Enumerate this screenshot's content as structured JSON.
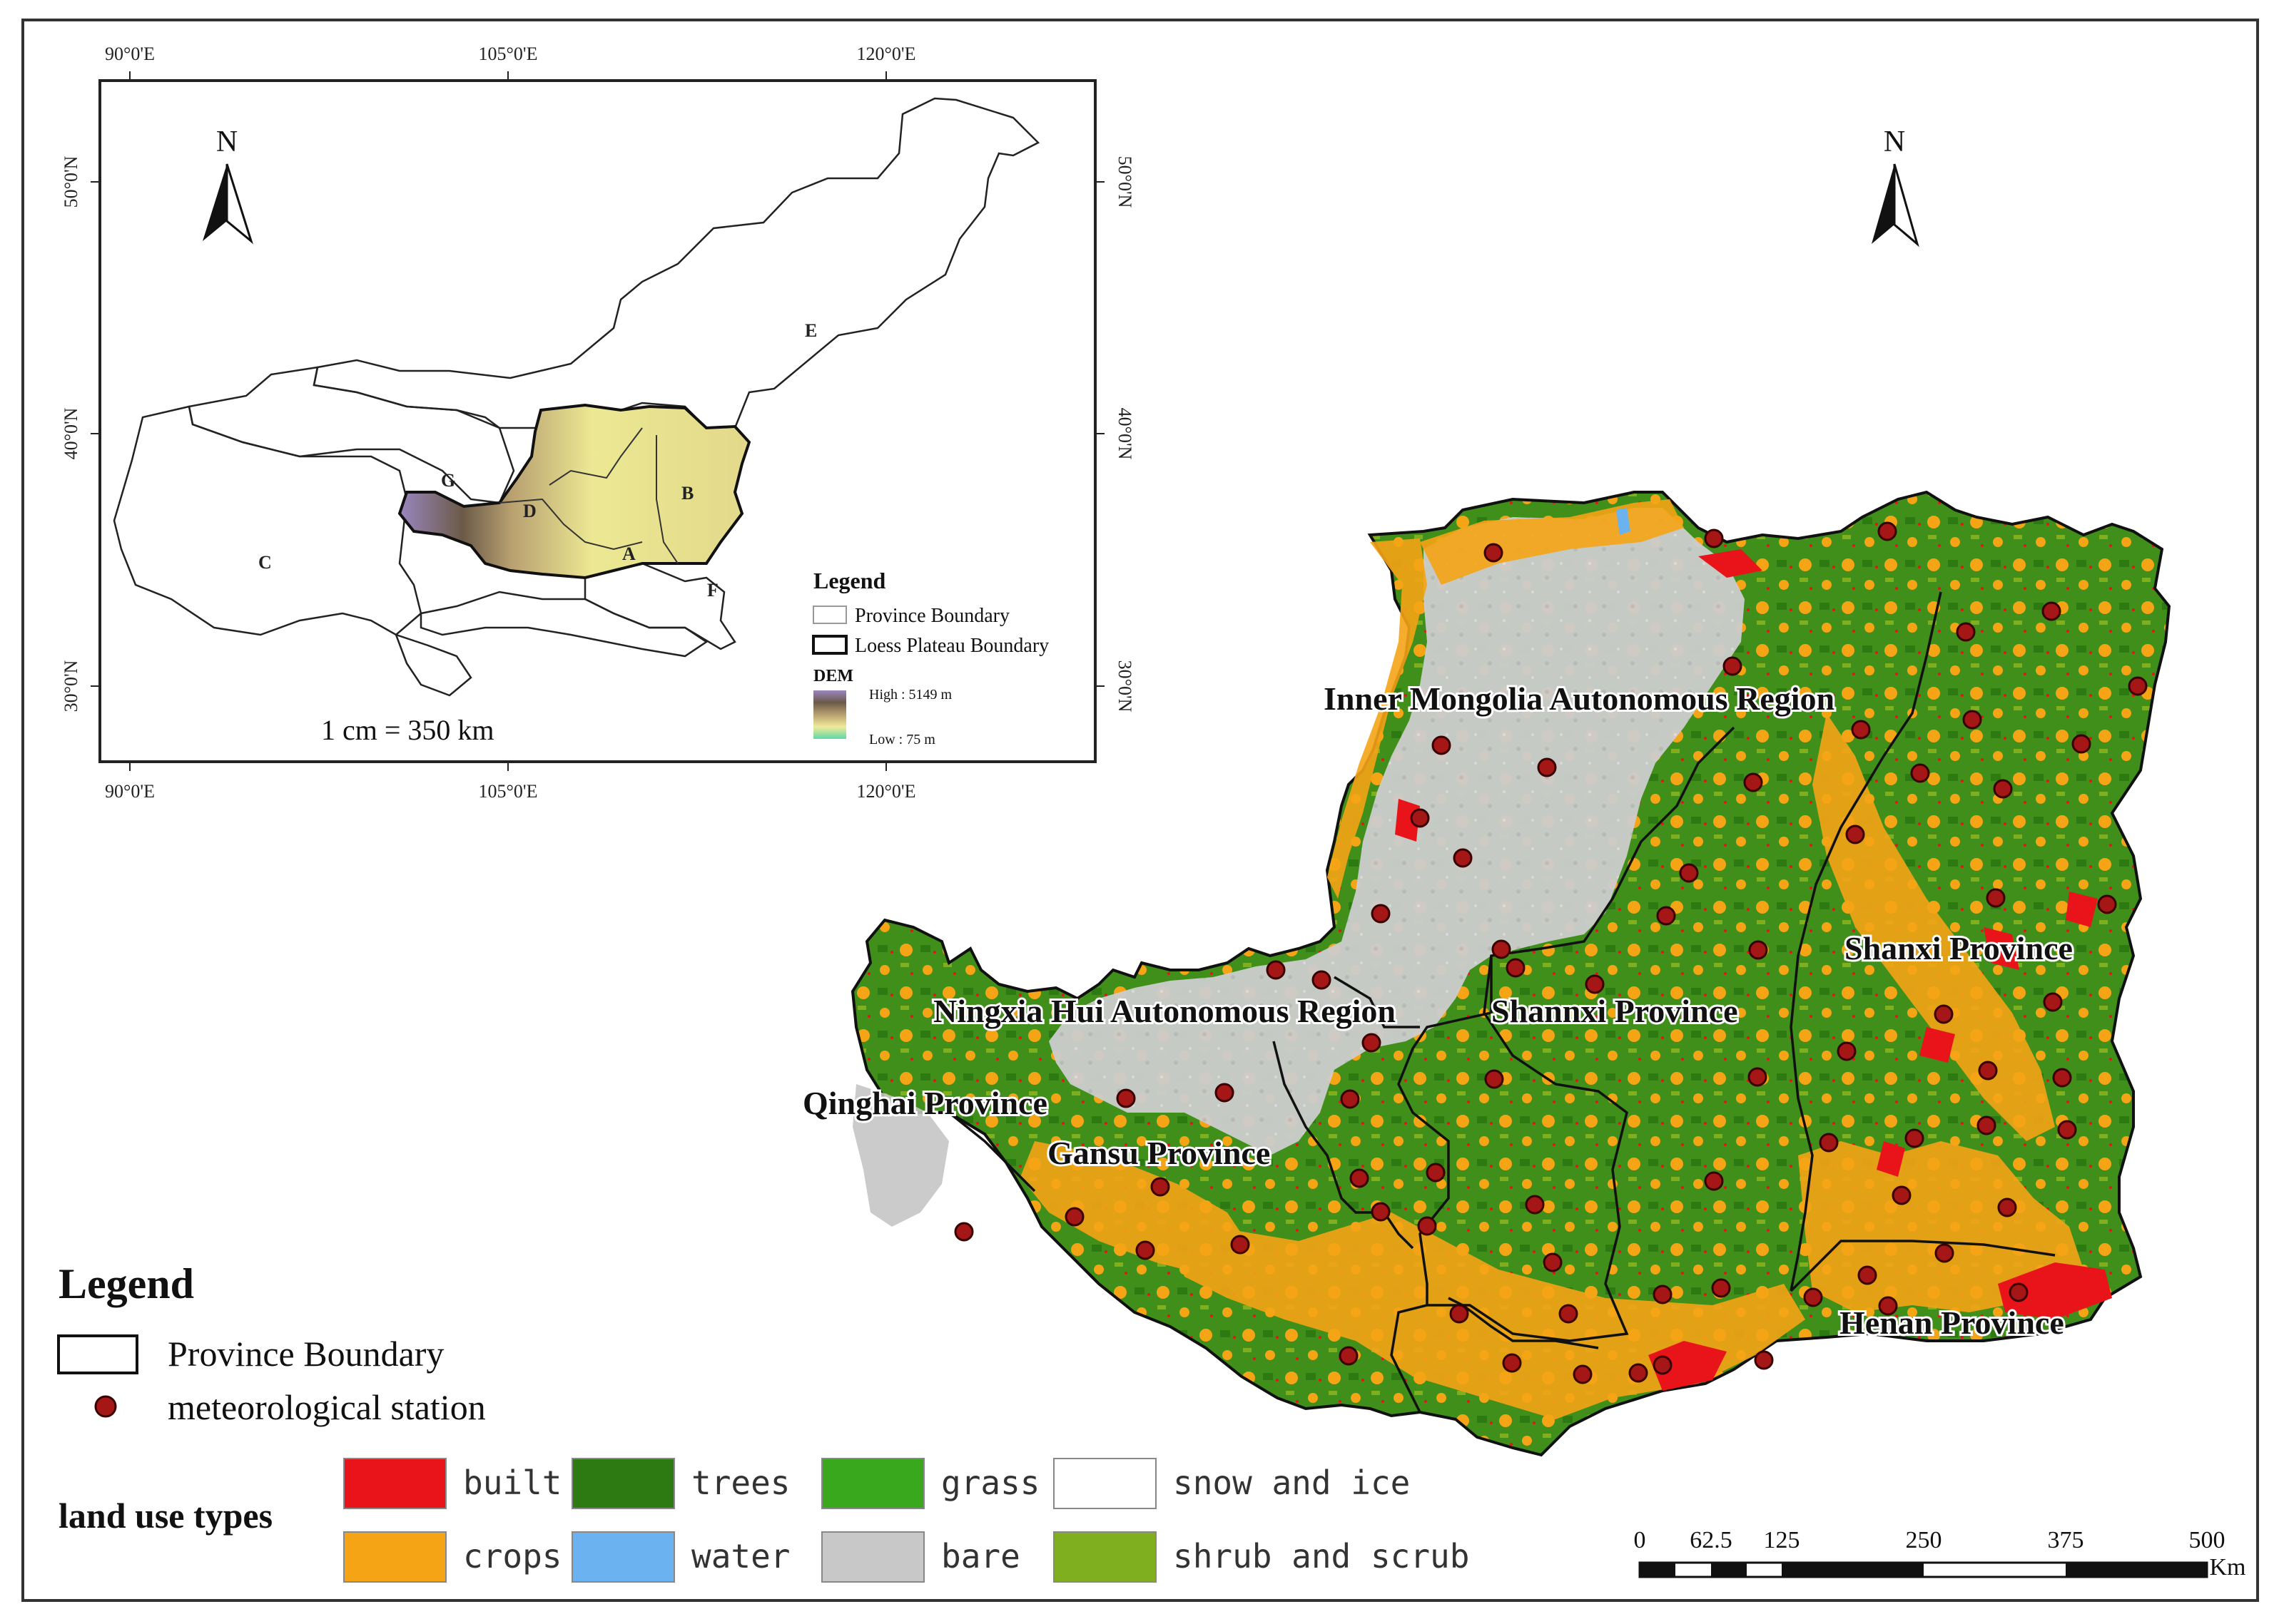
{
  "inset": {
    "lon_labels": [
      "90°0'E",
      "105°0'E",
      "120°0'E"
    ],
    "lat_labels": [
      "50°0'N",
      "40°0'N",
      "30°0'N"
    ],
    "region_letters": [
      "A",
      "B",
      "C",
      "D",
      "E",
      "F",
      "G"
    ],
    "north_label": "N",
    "legend": {
      "title": "Legend",
      "province_boundary": "Province Boundary",
      "loess_boundary": "Loess Plateau Boundary",
      "dem_title": "DEM",
      "dem_high": "High : 5149 m",
      "dem_low": "Low : 75 m"
    },
    "scale_text": "1 cm = 350 km"
  },
  "main": {
    "north_label": "N",
    "province_labels": [
      "Inner Mongolia Autonomous Region",
      "Shanxi Province",
      "Ningxia Hui Autonomous Region",
      "Shannxi Province",
      "Qinghai Province",
      "Gansu Province",
      "Henan Province"
    ],
    "scale": {
      "ticks": [
        "0",
        "62.5",
        "125",
        "250",
        "375",
        "500"
      ],
      "unit": "Km"
    }
  },
  "legend": {
    "title": "Legend",
    "province_boundary": "Province Boundary",
    "station": "meteorological station",
    "land_use_title": "land use types",
    "land_use": [
      {
        "label": "built",
        "color": "#e8141a"
      },
      {
        "label": "trees",
        "color": "#2d7a12"
      },
      {
        "label": "grass",
        "color": "#3aa81c"
      },
      {
        "label": "snow and ice",
        "color": "#ffffff"
      },
      {
        "label": "crops",
        "color": "#f5a416"
      },
      {
        "label": "water",
        "color": "#6ab2f0"
      },
      {
        "label": "bare",
        "color": "#c8c8c8"
      },
      {
        "label": "shrub and scrub",
        "color": "#7fae1e"
      }
    ]
  },
  "colors": {
    "station": "#a51616",
    "station_outline": "#3a0000"
  }
}
